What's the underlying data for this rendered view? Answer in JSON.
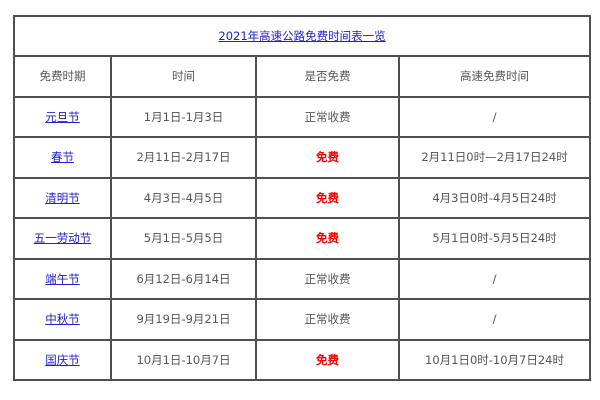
{
  "title": "2021年高速公路免费时间表一览",
  "headers": [
    "免费时期",
    "时间",
    "是否免费",
    "高速免费时间"
  ],
  "rows": [
    {
      "holiday": "元旦节",
      "dates": "1月1日-1月3日",
      "status": "正常收费",
      "free_time": "/"
    },
    {
      "holiday": "春节",
      "dates": "2月11日-2月17日",
      "status": "免费",
      "free_time": "2月11日0时—2月17日24时"
    },
    {
      "holiday": "清明节",
      "dates": "4月3日-4月5日",
      "status": "免费",
      "free_time": "4月3日0时-4月5日24时"
    },
    {
      "holiday": "五一劳动节",
      "dates": "5月1日-5月5日",
      "status": "免费",
      "free_time": "5月1日0时-5月5日24时"
    },
    {
      "holiday": "端午节",
      "dates": "6月12日-6月14日",
      "status": "正常收费",
      "free_time": "/"
    },
    {
      "holiday": "中秋节",
      "dates": "9月19日-9月21日",
      "status": "正常收费",
      "free_time": "/"
    },
    {
      "holiday": "国庆节",
      "dates": "10月1日-10月7日",
      "status": "免费",
      "free_time": "10月1日0时-10月7日24时"
    }
  ],
  "colors": {
    "link": "#2020d0",
    "free": "#ff0000",
    "text": "#555555",
    "border": "#505050"
  }
}
